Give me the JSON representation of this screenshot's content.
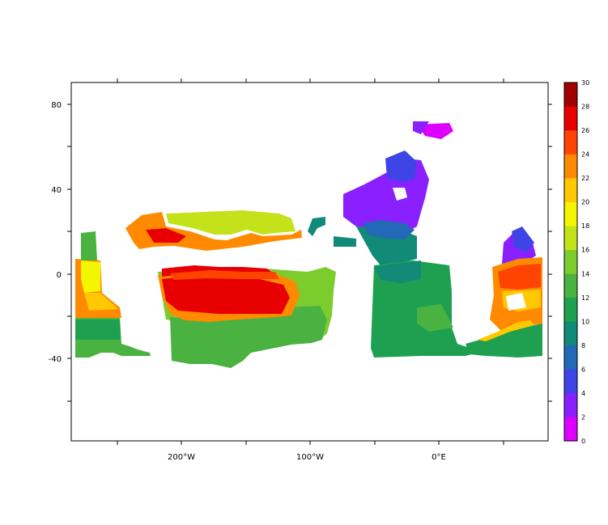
{
  "chart_data": {
    "type": "heatmap",
    "title": "",
    "xlabel": "",
    "ylabel": "",
    "x_ticks": [
      "200°W",
      "100°W",
      "0°E"
    ],
    "y_ticks": [
      "80",
      "40",
      "0",
      "-40"
    ],
    "colorbar": {
      "labels": [
        "0",
        "2",
        "4",
        "6",
        "8",
        "10",
        "12",
        "14",
        "16",
        "18",
        "20",
        "22",
        "24",
        "26",
        "28",
        "30"
      ],
      "colors": [
        "#dd00ff",
        "#8a20ff",
        "#3f44e6",
        "#2468b8",
        "#118a78",
        "#1ea050",
        "#49b241",
        "#7ccc2e",
        "#c4e21a",
        "#f4f500",
        "#ffc800",
        "#ff8a00",
        "#ff4400",
        "#e80000",
        "#a00000"
      ]
    },
    "grid": false
  }
}
